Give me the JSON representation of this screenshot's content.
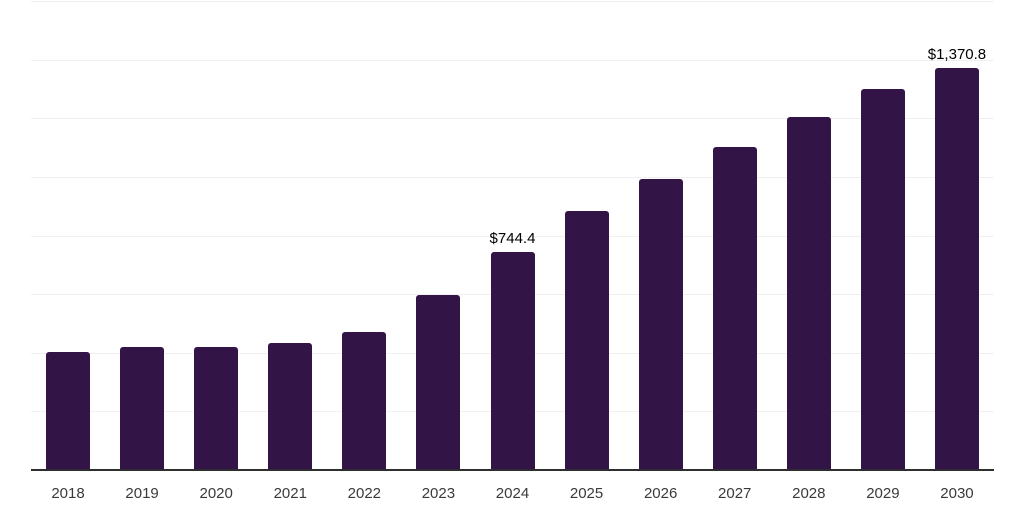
{
  "chart_data": {
    "type": "bar",
    "title": "",
    "xlabel": "",
    "ylabel": "",
    "categories": [
      "2018",
      "2019",
      "2020",
      "2021",
      "2022",
      "2023",
      "2024",
      "2025",
      "2026",
      "2027",
      "2028",
      "2029",
      "2030"
    ],
    "values": [
      401.8,
      418.9,
      418.9,
      432.6,
      472.2,
      597.5,
      744.4,
      884.2,
      992.4,
      1100.3,
      1202.8,
      1299.7,
      1370.8
    ],
    "annotations": [
      {
        "category": "2024",
        "text": "$744.4"
      },
      {
        "category": "2030",
        "text": "$1,370.8"
      }
    ],
    "ylim": [
      0,
      1600
    ],
    "grid_interval": 200,
    "grid": "on",
    "legend": "none",
    "colors": {
      "bar": "#331447",
      "gridline": "#f0f0f0",
      "axis_line": "#2e2e2e",
      "tick_label": "#3a3a3a",
      "data_label": "#000000",
      "background": "#ffffff"
    }
  }
}
